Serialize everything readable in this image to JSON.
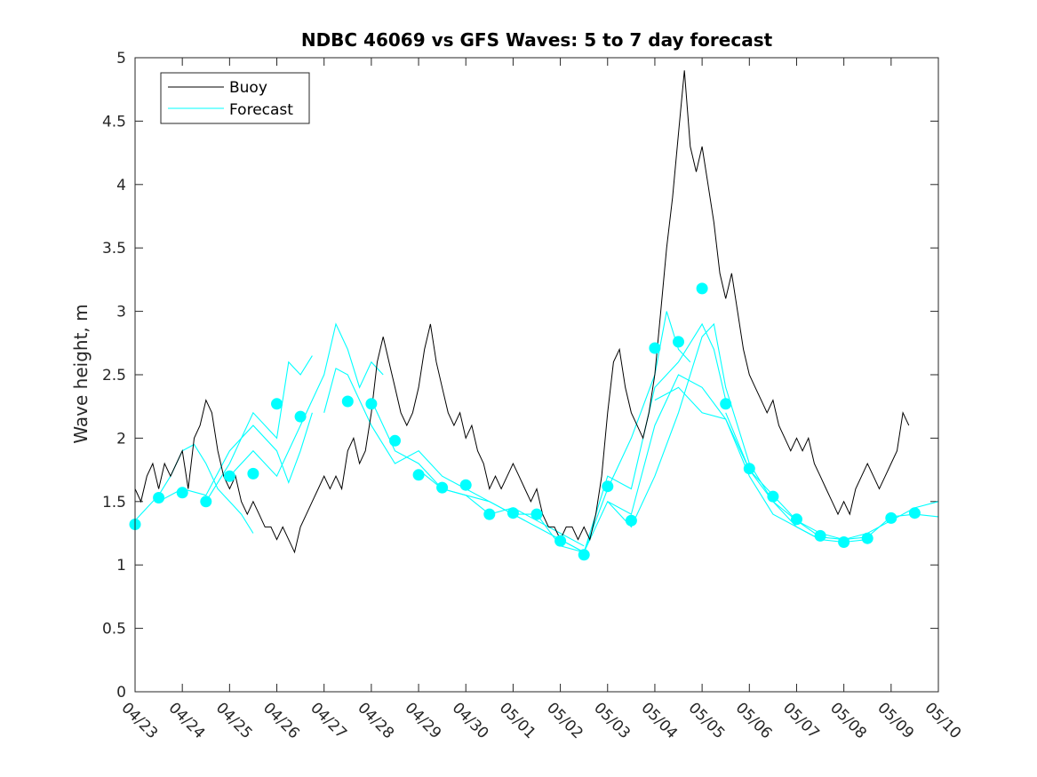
{
  "chart_data": {
    "type": "line",
    "title": "NDBC 46069 vs GFS Waves: 5 to 7 day forecast",
    "xlabel": "",
    "ylabel": "Wave height, m",
    "xlim": [
      "04/23",
      "05/10"
    ],
    "ylim": [
      0,
      5
    ],
    "x_ticks": [
      "04/23",
      "04/24",
      "04/25",
      "04/26",
      "04/27",
      "04/28",
      "04/29",
      "04/30",
      "05/01",
      "05/02",
      "05/03",
      "05/04",
      "05/05",
      "05/06",
      "05/07",
      "05/08",
      "05/09",
      "05/10"
    ],
    "y_ticks": [
      "0",
      "0.5",
      "1",
      "1.5",
      "2",
      "2.5",
      "3",
      "3.5",
      "4",
      "4.5",
      "5"
    ],
    "legend": {
      "position": "top-left",
      "entries": [
        "Buoy",
        "Forecast"
      ]
    },
    "colors": {
      "buoy": "#000000",
      "forecast": "#00ffff"
    },
    "buoy": {
      "name": "Buoy",
      "points": [
        [
          "04/23 00:00",
          1.6
        ],
        [
          "04/23 03:00",
          1.5
        ],
        [
          "04/23 06:00",
          1.7
        ],
        [
          "04/23 09:00",
          1.8
        ],
        [
          "04/23 12:00",
          1.6
        ],
        [
          "04/23 15:00",
          1.8
        ],
        [
          "04/23 18:00",
          1.7
        ],
        [
          "04/24 00:00",
          1.9
        ],
        [
          "04/24 03:00",
          1.6
        ],
        [
          "04/24 06:00",
          2.0
        ],
        [
          "04/24 09:00",
          2.1
        ],
        [
          "04/24 12:00",
          2.3
        ],
        [
          "04/24 15:00",
          2.2
        ],
        [
          "04/24 18:00",
          1.9
        ],
        [
          "04/24 21:00",
          1.7
        ],
        [
          "04/25 00:00",
          1.6
        ],
        [
          "04/25 03:00",
          1.7
        ],
        [
          "04/25 06:00",
          1.5
        ],
        [
          "04/25 09:00",
          1.4
        ],
        [
          "04/25 12:00",
          1.5
        ],
        [
          "04/25 15:00",
          1.4
        ],
        [
          "04/25 18:00",
          1.3
        ],
        [
          "04/25 21:00",
          1.3
        ],
        [
          "04/26 00:00",
          1.2
        ],
        [
          "04/26 03:00",
          1.3
        ],
        [
          "04/26 06:00",
          1.2
        ],
        [
          "04/26 09:00",
          1.1
        ],
        [
          "04/26 12:00",
          1.3
        ],
        [
          "04/26 15:00",
          1.4
        ],
        [
          "04/26 18:00",
          1.5
        ],
        [
          "04/26 21:00",
          1.6
        ],
        [
          "04/27 00:00",
          1.7
        ],
        [
          "04/27 03:00",
          1.6
        ],
        [
          "04/27 06:00",
          1.7
        ],
        [
          "04/27 09:00",
          1.6
        ],
        [
          "04/27 12:00",
          1.9
        ],
        [
          "04/27 15:00",
          2.0
        ],
        [
          "04/27 18:00",
          1.8
        ],
        [
          "04/27 21:00",
          1.9
        ],
        [
          "04/28 00:00",
          2.2
        ],
        [
          "04/28 03:00",
          2.6
        ],
        [
          "04/28 06:00",
          2.8
        ],
        [
          "04/28 09:00",
          2.6
        ],
        [
          "04/28 12:00",
          2.4
        ],
        [
          "04/28 15:00",
          2.2
        ],
        [
          "04/28 18:00",
          2.1
        ],
        [
          "04/28 21:00",
          2.2
        ],
        [
          "04/29 00:00",
          2.4
        ],
        [
          "04/29 03:00",
          2.7
        ],
        [
          "04/29 06:00",
          2.9
        ],
        [
          "04/29 09:00",
          2.6
        ],
        [
          "04/29 12:00",
          2.4
        ],
        [
          "04/29 15:00",
          2.2
        ],
        [
          "04/29 18:00",
          2.1
        ],
        [
          "04/29 21:00",
          2.2
        ],
        [
          "04/30 00:00",
          2.0
        ],
        [
          "04/30 03:00",
          2.1
        ],
        [
          "04/30 06:00",
          1.9
        ],
        [
          "04/30 09:00",
          1.8
        ],
        [
          "04/30 12:00",
          1.6
        ],
        [
          "04/30 15:00",
          1.7
        ],
        [
          "04/30 18:00",
          1.6
        ],
        [
          "04/30 21:00",
          1.7
        ],
        [
          "05/01 00:00",
          1.8
        ],
        [
          "05/01 03:00",
          1.7
        ],
        [
          "05/01 06:00",
          1.6
        ],
        [
          "05/01 09:00",
          1.5
        ],
        [
          "05/01 12:00",
          1.6
        ],
        [
          "05/01 15:00",
          1.4
        ],
        [
          "05/01 18:00",
          1.3
        ],
        [
          "05/01 21:00",
          1.3
        ],
        [
          "05/02 00:00",
          1.2
        ],
        [
          "05/02 03:00",
          1.3
        ],
        [
          "05/02 06:00",
          1.3
        ],
        [
          "05/02 09:00",
          1.2
        ],
        [
          "05/02 12:00",
          1.3
        ],
        [
          "05/02 15:00",
          1.2
        ],
        [
          "05/02 18:00",
          1.4
        ],
        [
          "05/02 21:00",
          1.7
        ],
        [
          "05/03 00:00",
          2.2
        ],
        [
          "05/03 03:00",
          2.6
        ],
        [
          "05/03 06:00",
          2.7
        ],
        [
          "05/03 09:00",
          2.4
        ],
        [
          "05/03 12:00",
          2.2
        ],
        [
          "05/03 15:00",
          2.1
        ],
        [
          "05/03 18:00",
          2.0
        ],
        [
          "05/03 21:00",
          2.2
        ],
        [
          "05/04 00:00",
          2.5
        ],
        [
          "05/04 03:00",
          3.0
        ],
        [
          "05/04 06:00",
          3.5
        ],
        [
          "05/04 09:00",
          3.9
        ],
        [
          "05/04 12:00",
          4.4
        ],
        [
          "05/04 15:00",
          4.9
        ],
        [
          "05/04 18:00",
          4.3
        ],
        [
          "05/04 21:00",
          4.1
        ],
        [
          "05/05 00:00",
          4.3
        ],
        [
          "05/05 03:00",
          4.0
        ],
        [
          "05/05 06:00",
          3.7
        ],
        [
          "05/05 09:00",
          3.3
        ],
        [
          "05/05 12:00",
          3.1
        ],
        [
          "05/05 15:00",
          3.3
        ],
        [
          "05/05 18:00",
          3.0
        ],
        [
          "05/05 21:00",
          2.7
        ],
        [
          "05/06 00:00",
          2.5
        ],
        [
          "05/06 03:00",
          2.4
        ],
        [
          "05/06 06:00",
          2.3
        ],
        [
          "05/06 09:00",
          2.2
        ],
        [
          "05/06 12:00",
          2.3
        ],
        [
          "05/06 15:00",
          2.1
        ],
        [
          "05/06 18:00",
          2.0
        ],
        [
          "05/06 21:00",
          1.9
        ],
        [
          "05/07 00:00",
          2.0
        ],
        [
          "05/07 03:00",
          1.9
        ],
        [
          "05/07 06:00",
          2.0
        ],
        [
          "05/07 09:00",
          1.8
        ],
        [
          "05/07 12:00",
          1.7
        ],
        [
          "05/07 15:00",
          1.6
        ],
        [
          "05/07 18:00",
          1.5
        ],
        [
          "05/07 21:00",
          1.4
        ],
        [
          "05/08 00:00",
          1.5
        ],
        [
          "05/08 03:00",
          1.4
        ],
        [
          "05/08 06:00",
          1.6
        ],
        [
          "05/08 09:00",
          1.7
        ],
        [
          "05/08 12:00",
          1.8
        ],
        [
          "05/08 15:00",
          1.7
        ],
        [
          "05/08 18:00",
          1.6
        ],
        [
          "05/08 21:00",
          1.7
        ],
        [
          "05/09 00:00",
          1.8
        ],
        [
          "05/09 03:00",
          1.9
        ],
        [
          "05/09 06:00",
          2.2
        ],
        [
          "05/09 09:00",
          2.1
        ]
      ]
    },
    "forecast_markers": [
      [
        "04/23 00:00",
        1.32
      ],
      [
        "04/23 12:00",
        1.53
      ],
      [
        "04/24 00:00",
        1.57
      ],
      [
        "04/24 12:00",
        1.5
      ],
      [
        "04/25 00:00",
        1.7
      ],
      [
        "04/25 12:00",
        1.72
      ],
      [
        "04/26 00:00",
        2.27
      ],
      [
        "04/26 12:00",
        2.17
      ],
      [
        "04/27 12:00",
        2.29
      ],
      [
        "04/28 00:00",
        2.27
      ],
      [
        "04/28 12:00",
        1.98
      ],
      [
        "04/29 00:00",
        1.71
      ],
      [
        "04/29 12:00",
        1.61
      ],
      [
        "04/30 00:00",
        1.63
      ],
      [
        "04/30 12:00",
        1.4
      ],
      [
        "05/01 00:00",
        1.41
      ],
      [
        "05/01 12:00",
        1.4
      ],
      [
        "05/02 00:00",
        1.19
      ],
      [
        "05/02 12:00",
        1.08
      ],
      [
        "05/03 00:00",
        1.62
      ],
      [
        "05/03 12:00",
        1.35
      ],
      [
        "05/04 00:00",
        2.71
      ],
      [
        "05/04 12:00",
        2.76
      ],
      [
        "05/05 00:00",
        3.18
      ],
      [
        "05/05 12:00",
        2.27
      ],
      [
        "05/06 00:00",
        1.76
      ],
      [
        "05/06 12:00",
        1.54
      ],
      [
        "05/07 00:00",
        1.36
      ],
      [
        "05/07 12:00",
        1.23
      ],
      [
        "05/08 00:00",
        1.18
      ],
      [
        "05/08 12:00",
        1.21
      ],
      [
        "05/09 00:00",
        1.37
      ],
      [
        "05/09 12:00",
        1.41
      ]
    ],
    "forecast_runs": [
      [
        [
          "04/23 00:00",
          1.35
        ],
        [
          "04/23 06:00",
          1.45
        ],
        [
          "04/23 12:00",
          1.55
        ],
        [
          "04/23 18:00",
          1.7
        ],
        [
          "04/24 00:00",
          1.9
        ],
        [
          "04/24 06:00",
          1.95
        ],
        [
          "04/24 12:00",
          1.8
        ],
        [
          "04/24 18:00",
          1.6
        ],
        [
          "04/25 00:00",
          1.5
        ],
        [
          "04/25 06:00",
          1.4
        ],
        [
          "04/25 12:00",
          1.25
        ]
      ],
      [
        [
          "04/23 12:00",
          1.5
        ],
        [
          "04/24 00:00",
          1.6
        ],
        [
          "04/24 12:00",
          1.55
        ],
        [
          "04/25 00:00",
          1.9
        ],
        [
          "04/25 12:00",
          2.1
        ],
        [
          "04/26 00:00",
          1.9
        ],
        [
          "04/26 06:00",
          1.65
        ],
        [
          "04/26 12:00",
          1.9
        ],
        [
          "04/26 18:00",
          2.2
        ]
      ],
      [
        [
          "04/24 12:00",
          1.5
        ],
        [
          "04/25 00:00",
          1.8
        ],
        [
          "04/25 12:00",
          2.2
        ],
        [
          "04/26 00:00",
          2.0
        ],
        [
          "04/26 06:00",
          2.6
        ],
        [
          "04/26 12:00",
          2.5
        ],
        [
          "04/26 18:00",
          2.65
        ]
      ],
      [
        [
          "04/25 00:00",
          1.7
        ],
        [
          "04/25 12:00",
          1.9
        ],
        [
          "04/26 00:00",
          1.7
        ],
        [
          "04/26 12:00",
          2.1
        ],
        [
          "04/27 00:00",
          2.5
        ],
        [
          "04/27 06:00",
          2.9
        ],
        [
          "04/27 12:00",
          2.7
        ],
        [
          "04/27 18:00",
          2.4
        ],
        [
          "04/28 00:00",
          2.6
        ],
        [
          "04/28 06:00",
          2.5
        ]
      ],
      [
        [
          "04/27 00:00",
          2.2
        ],
        [
          "04/27 06:00",
          2.55
        ],
        [
          "04/27 12:00",
          2.5
        ],
        [
          "04/27 18:00",
          2.3
        ],
        [
          "04/28 00:00",
          2.1
        ],
        [
          "04/28 12:00",
          1.8
        ],
        [
          "04/29 00:00",
          1.9
        ],
        [
          "04/29 12:00",
          1.7
        ],
        [
          "04/30 00:00",
          1.6
        ],
        [
          "04/30 12:00",
          1.5
        ],
        [
          "05/01 00:00",
          1.4
        ],
        [
          "05/01 06:00",
          1.35
        ]
      ],
      [
        [
          "04/28 00:00",
          2.3
        ],
        [
          "04/28 12:00",
          1.9
        ],
        [
          "04/29 00:00",
          1.8
        ],
        [
          "04/29 12:00",
          1.6
        ],
        [
          "04/30 00:00",
          1.55
        ],
        [
          "04/30 12:00",
          1.4
        ],
        [
          "05/01 00:00",
          1.45
        ],
        [
          "05/01 12:00",
          1.35
        ],
        [
          "05/02 00:00",
          1.25
        ],
        [
          "05/02 12:00",
          1.15
        ]
      ],
      [
        [
          "04/29 00:00",
          1.75
        ],
        [
          "04/29 12:00",
          1.6
        ],
        [
          "04/30 00:00",
          1.55
        ],
        [
          "04/30 12:00",
          1.5
        ],
        [
          "05/01 00:00",
          1.4
        ],
        [
          "05/01 12:00",
          1.3
        ],
        [
          "05/02 00:00",
          1.2
        ],
        [
          "05/02 12:00",
          1.1
        ],
        [
          "05/03 00:00",
          1.6
        ],
        [
          "05/03 12:00",
          2.0
        ],
        [
          "05/04 00:00",
          2.5
        ],
        [
          "05/04 06:00",
          3.0
        ],
        [
          "05/04 12:00",
          2.7
        ],
        [
          "05/04 18:00",
          2.6
        ]
      ],
      [
        [
          "05/01 00:00",
          1.4
        ],
        [
          "05/01 12:00",
          1.4
        ],
        [
          "05/02 00:00",
          1.15
        ],
        [
          "05/02 12:00",
          1.1
        ],
        [
          "05/03 00:00",
          1.7
        ],
        [
          "05/03 12:00",
          1.6
        ],
        [
          "05/04 00:00",
          2.4
        ],
        [
          "05/04 12:00",
          2.6
        ],
        [
          "05/05 00:00",
          2.9
        ],
        [
          "05/05 06:00",
          2.7
        ],
        [
          "05/05 12:00",
          2.3
        ]
      ],
      [
        [
          "05/02 00:00",
          1.2
        ],
        [
          "05/02 12:00",
          1.1
        ],
        [
          "05/03 00:00",
          1.5
        ],
        [
          "05/03 12:00",
          1.4
        ],
        [
          "05/04 00:00",
          2.1
        ],
        [
          "05/04 12:00",
          2.5
        ],
        [
          "05/05 00:00",
          2.4
        ],
        [
          "05/05 12:00",
          2.15
        ],
        [
          "05/06 00:00",
          1.7
        ],
        [
          "05/06 12:00",
          1.4
        ],
        [
          "05/07 00:00",
          1.3
        ],
        [
          "05/07 12:00",
          1.2
        ]
      ],
      [
        [
          "05/03 00:00",
          1.5
        ],
        [
          "05/03 12:00",
          1.3
        ],
        [
          "05/04 00:00",
          1.7
        ],
        [
          "05/04 12:00",
          2.2
        ],
        [
          "05/05 00:00",
          2.8
        ],
        [
          "05/05 06:00",
          2.9
        ],
        [
          "05/05 12:00",
          2.4
        ],
        [
          "05/06 00:00",
          1.8
        ],
        [
          "05/06 12:00",
          1.5
        ],
        [
          "05/07 00:00",
          1.3
        ],
        [
          "05/07 12:00",
          1.2
        ],
        [
          "05/08 00:00",
          1.18
        ],
        [
          "05/08 12:00",
          1.2
        ]
      ],
      [
        [
          "05/04 00:00",
          2.3
        ],
        [
          "05/04 12:00",
          2.4
        ],
        [
          "05/05 00:00",
          2.2
        ],
        [
          "05/05 12:00",
          2.15
        ],
        [
          "05/06 00:00",
          1.75
        ],
        [
          "05/06 12:00",
          1.55
        ],
        [
          "05/07 00:00",
          1.35
        ],
        [
          "05/07 12:00",
          1.25
        ],
        [
          "05/08 00:00",
          1.2
        ],
        [
          "05/08 12:00",
          1.25
        ],
        [
          "05/09 00:00",
          1.35
        ],
        [
          "05/09 12:00",
          1.45
        ],
        [
          "05/10 00:00",
          1.5
        ]
      ],
      [
        [
          "05/05 12:00",
          2.2
        ],
        [
          "05/06 00:00",
          1.75
        ],
        [
          "05/06 12:00",
          1.5
        ],
        [
          "05/07 00:00",
          1.35
        ],
        [
          "05/07 12:00",
          1.22
        ],
        [
          "05/08 00:00",
          1.2
        ],
        [
          "05/08 12:00",
          1.22
        ],
        [
          "05/09 00:00",
          1.38
        ],
        [
          "05/09 12:00",
          1.4
        ],
        [
          "05/10 00:00",
          1.38
        ]
      ]
    ]
  }
}
